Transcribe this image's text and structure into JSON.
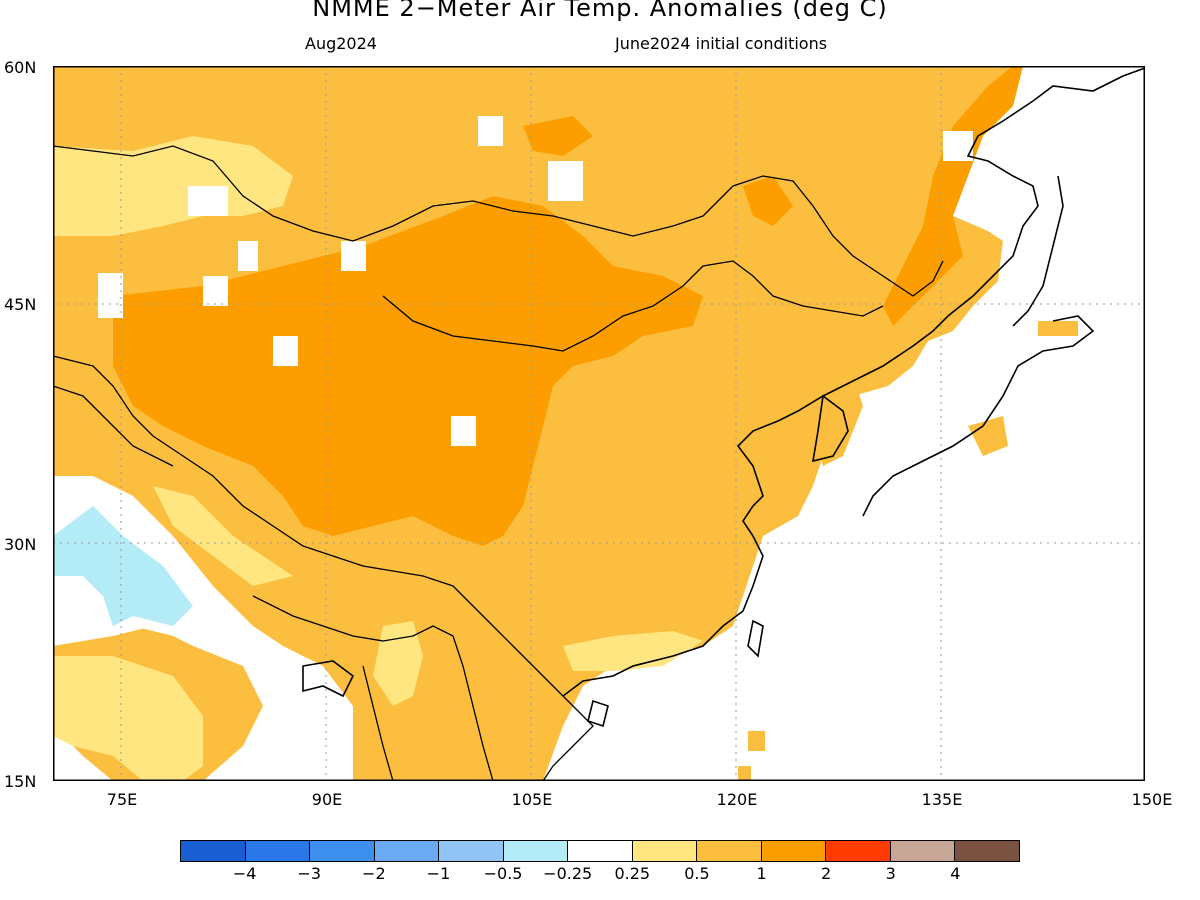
{
  "title": "NMME 2−Meter Air Temp. Anomalies (deg C)",
  "subtitle_left": "Aug2024",
  "subtitle_right": "June2024 initial conditions",
  "lat_labels": [
    "60N",
    "45N",
    "30N",
    "15N"
  ],
  "lon_labels": [
    "75E",
    "90E",
    "105E",
    "120E",
    "135E",
    "150E"
  ],
  "colorbar": {
    "colors": [
      "#1a5fd1",
      "#2a78e8",
      "#3d8ff0",
      "#6aaaf2",
      "#8fc4f5",
      "#b3ecf7",
      "#ffffff",
      "#ffe680",
      "#fcbe3f",
      "#fd9e00",
      "#ff3b00",
      "#c8a696",
      "#7b5141"
    ],
    "labels": [
      "−4",
      "−3",
      "−2",
      "−1",
      "−0.5",
      "−0.25",
      "0.25",
      "0.5",
      "1",
      "2",
      "3",
      "4"
    ]
  },
  "map": {
    "lon_range": [
      68,
      150
    ],
    "lat_range": [
      15,
      60
    ],
    "gridlines": "dotted"
  }
}
